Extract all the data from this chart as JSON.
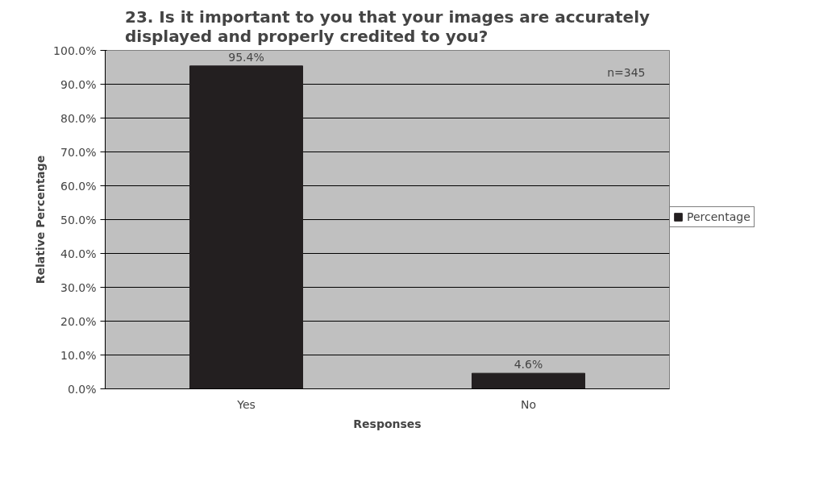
{
  "chart_data": {
    "type": "bar",
    "title": "23. Is it important to you that your images are accurately displayed and properly credited to you?",
    "xlabel": "Responses",
    "ylabel": "Relative Percentage",
    "categories": [
      "Yes",
      "No"
    ],
    "series": [
      {
        "name": "Percentage",
        "color": "#231f20",
        "values": [
          95.4,
          4.6
        ],
        "value_labels": [
          "95.4%",
          "4.6%"
        ]
      }
    ],
    "ylim": [
      0,
      100
    ],
    "yticks": [
      {
        "value": 0,
        "label": "0.0%"
      },
      {
        "value": 10,
        "label": "10.0%"
      },
      {
        "value": 20,
        "label": "20.0%"
      },
      {
        "value": 30,
        "label": "30.0%"
      },
      {
        "value": 40,
        "label": "40.0%"
      },
      {
        "value": 50,
        "label": "50.0%"
      },
      {
        "value": 60,
        "label": "60.0%"
      },
      {
        "value": 70,
        "label": "70.0%"
      },
      {
        "value": 80,
        "label": "80.0%"
      },
      {
        "value": 90,
        "label": "90.0%"
      },
      {
        "value": 100,
        "label": "100.0%"
      }
    ],
    "grid": "y",
    "legend": "right",
    "annotations": [
      "n=345"
    ]
  }
}
